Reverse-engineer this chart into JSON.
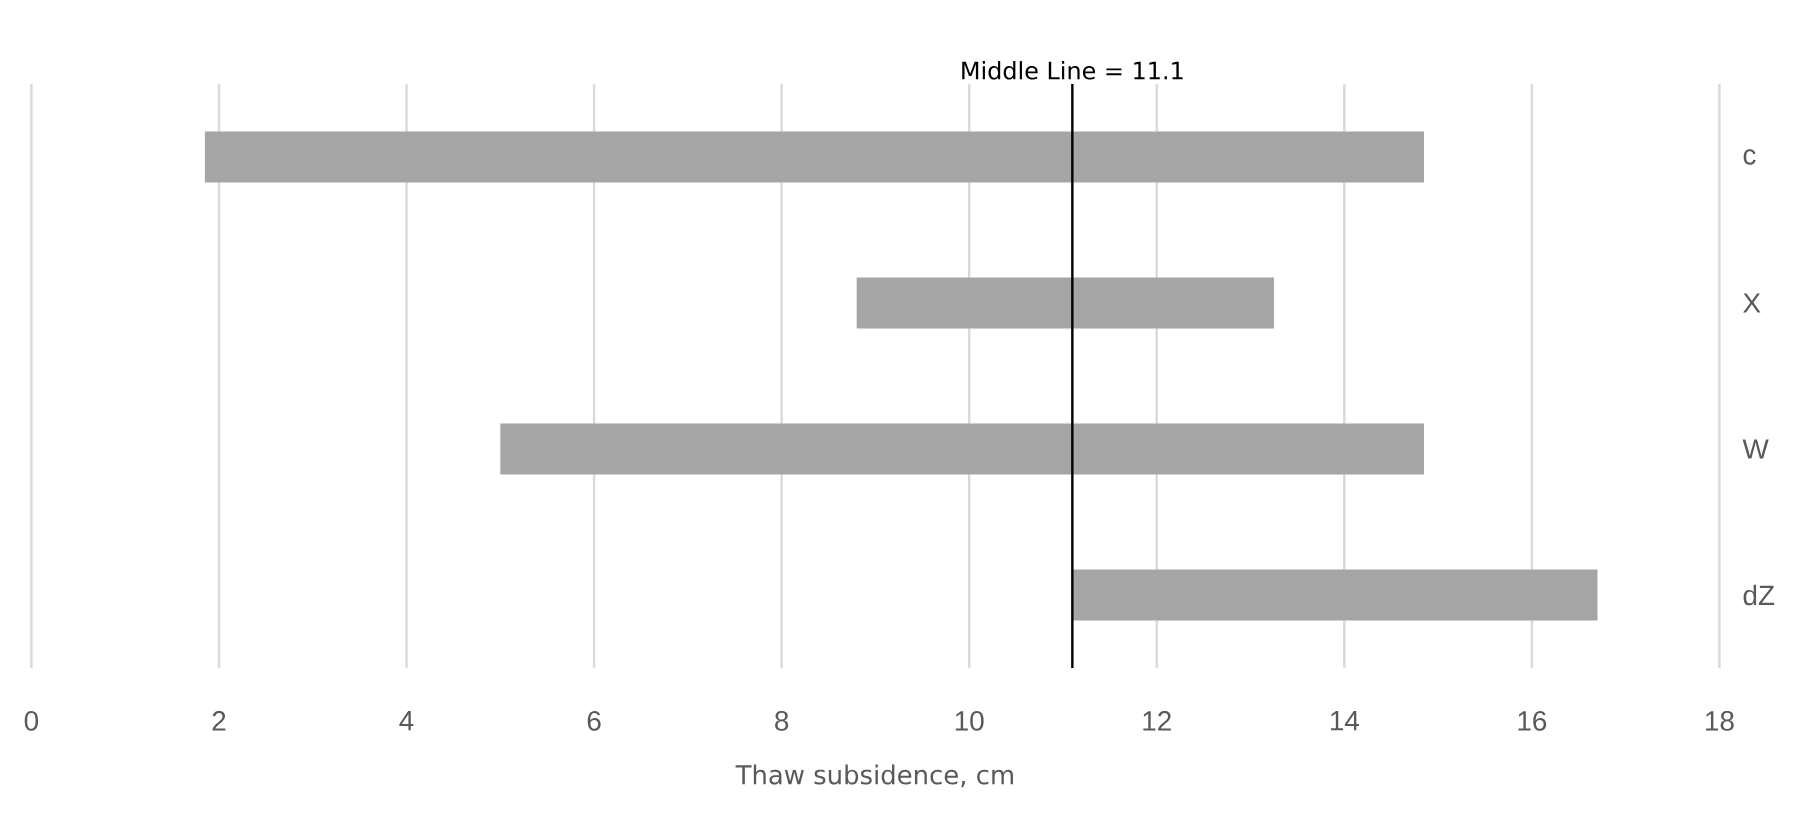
{
  "chart_data": {
    "type": "bar",
    "orientation": "horizontal",
    "xlabel": "Thaw subsidence, cm",
    "categories": [
      "c",
      "X",
      "W",
      "dZ"
    ],
    "base": [
      1.85,
      8.8,
      5.0,
      11.1
    ],
    "values": [
      13.0,
      4.45,
      9.85,
      5.6
    ],
    "color": "#a5a5a5",
    "xlim": [
      0,
      18
    ],
    "xticks": [
      0,
      2,
      4,
      6,
      8,
      10,
      12,
      14,
      16,
      18
    ],
    "grid": "x",
    "ref_lines": [
      {
        "axis": "x",
        "value": 11.1,
        "label": "Middle Line = 11.1",
        "color": "#000000"
      }
    ]
  }
}
